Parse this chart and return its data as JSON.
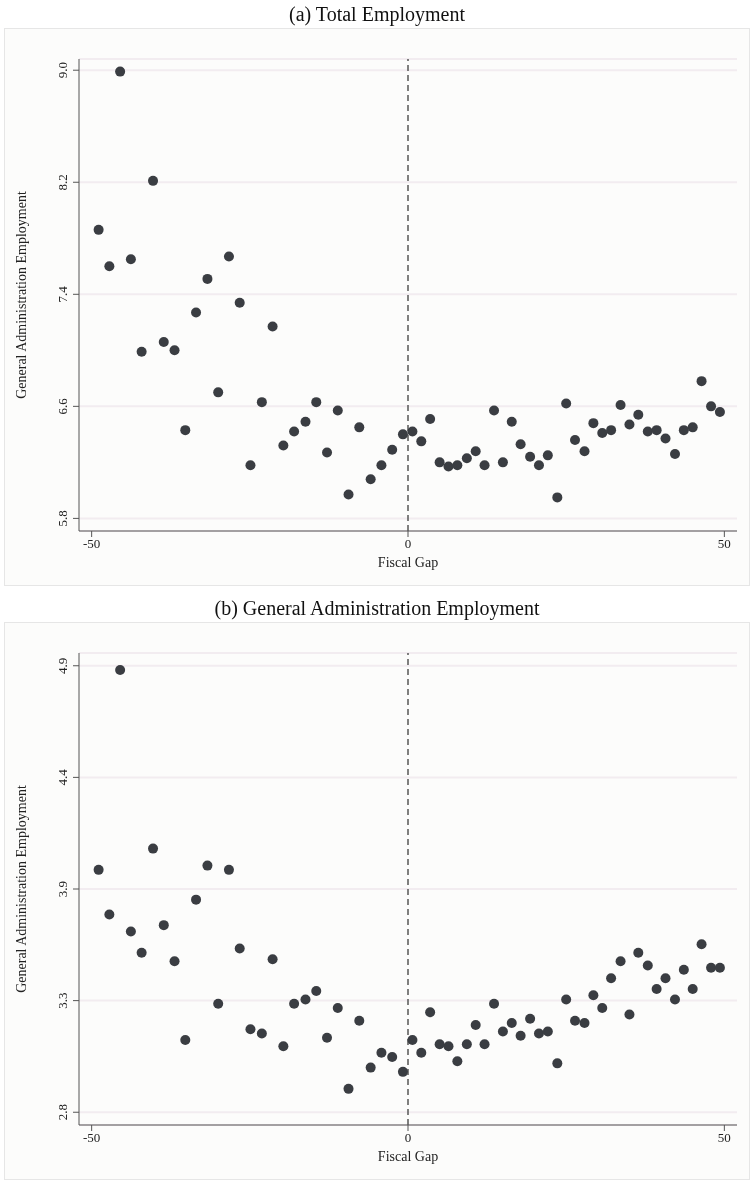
{
  "chart_data": [
    {
      "type": "scatter",
      "title": "(a) Total Employment",
      "xlabel": "Fiscal Gap",
      "ylabel": "General Administration Employment",
      "color": "#3a3d42",
      "marker": "circle",
      "grid": "y",
      "xlim": [
        -52,
        52
      ],
      "xticks": [
        -50,
        0,
        50
      ],
      "ylim": [
        5.71,
        9.08
      ],
      "yticks": [
        5.8,
        6.6,
        7.4,
        8.2,
        {
          "value": 9,
          "label": "9.0"
        }
      ],
      "ref_lines": [
        {
          "axis": "x",
          "value": 0,
          "line_style": "dashed",
          "color": "#555555"
        }
      ],
      "x": [
        -48.9,
        -47.2,
        -45.5,
        -43.8,
        -42.1,
        -40.3,
        -38.6,
        -36.9,
        -35.2,
        -33.5,
        -31.7,
        -30.0,
        -28.3,
        -26.6,
        -24.9,
        -23.1,
        -21.4,
        -19.7,
        -18.0,
        -16.2,
        -14.5,
        -12.8,
        -11.1,
        -9.4,
        -7.7,
        -5.9,
        -4.2,
        -2.5,
        -0.8,
        0.7,
        2.1,
        3.5,
        5.0,
        6.4,
        7.8,
        9.3,
        10.7,
        12.1,
        13.6,
        15.0,
        16.4,
        17.8,
        19.3,
        20.7,
        22.1,
        23.6,
        25.0,
        26.4,
        27.9,
        29.3,
        30.7,
        32.1,
        33.6,
        35.0,
        36.4,
        37.9,
        39.3,
        40.7,
        42.2,
        43.6,
        45.0,
        46.4,
        47.9,
        49.3
      ],
      "values": [
        7.86,
        7.6,
        8.99,
        7.65,
        6.99,
        8.21,
        7.06,
        7.0,
        6.43,
        7.27,
        7.51,
        6.7,
        7.67,
        7.34,
        6.18,
        6.63,
        7.17,
        6.32,
        6.42,
        6.49,
        6.63,
        6.27,
        6.57,
        5.97,
        6.45,
        6.08,
        6.18,
        6.29,
        6.4,
        6.42,
        6.35,
        6.51,
        6.2,
        6.17,
        6.18,
        6.23,
        6.28,
        6.18,
        6.57,
        6.2,
        6.49,
        6.33,
        6.24,
        6.18,
        6.25,
        5.95,
        6.62,
        6.36,
        6.28,
        6.48,
        6.41,
        6.43,
        6.61,
        6.47,
        6.54,
        6.42,
        6.43,
        6.37,
        6.26,
        6.43,
        6.45,
        6.78,
        6.6,
        6.56
      ]
    },
    {
      "type": "scatter",
      "title": "(b) General Administration Employment",
      "xlabel": "Fiscal Gap",
      "ylabel": "General Administration Employment",
      "color": "#3a3d42",
      "marker": "circle",
      "grid": "y",
      "xlim": [
        -52,
        52
      ],
      "xticks": [
        -50,
        0,
        50
      ],
      "ylim": [
        2.74,
        4.96
      ],
      "yticks": [
        2.8,
        {
          "value": 3.325,
          "label": "3.3"
        },
        {
          "value": 3.85,
          "label": "3.9"
        },
        {
          "value": 4.375,
          "label": "4.4"
        },
        4.9
      ],
      "ref_lines": [
        {
          "axis": "x",
          "value": 0,
          "line_style": "dashed",
          "color": "#555555"
        }
      ],
      "x": [
        -48.9,
        -47.2,
        -45.5,
        -43.8,
        -42.1,
        -40.3,
        -38.6,
        -36.9,
        -35.2,
        -33.5,
        -31.7,
        -30.0,
        -28.3,
        -26.6,
        -24.9,
        -23.1,
        -21.4,
        -19.7,
        -18.0,
        -16.2,
        -14.5,
        -12.8,
        -11.1,
        -9.4,
        -7.7,
        -5.9,
        -4.2,
        -2.5,
        -0.8,
        0.7,
        2.1,
        3.5,
        5.0,
        6.4,
        7.8,
        9.3,
        10.7,
        12.1,
        13.6,
        15.0,
        16.4,
        17.8,
        19.3,
        20.7,
        22.1,
        23.6,
        25.0,
        26.4,
        27.9,
        29.3,
        30.7,
        32.1,
        33.6,
        35.0,
        36.4,
        37.9,
        39.3,
        40.7,
        42.2,
        43.6,
        45.0,
        46.4,
        47.9,
        49.3
      ],
      "values": [
        3.94,
        3.73,
        4.88,
        3.65,
        3.55,
        4.04,
        3.68,
        3.51,
        3.14,
        3.8,
        3.96,
        3.31,
        3.94,
        3.57,
        3.19,
        3.17,
        3.52,
        3.11,
        3.31,
        3.33,
        3.37,
        3.15,
        3.29,
        2.91,
        3.23,
        3.01,
        3.08,
        3.06,
        2.99,
        3.14,
        3.08,
        3.27,
        3.12,
        3.11,
        3.04,
        3.12,
        3.21,
        3.12,
        3.31,
        3.18,
        3.22,
        3.16,
        3.24,
        3.17,
        3.18,
        3.03,
        3.33,
        3.23,
        3.22,
        3.35,
        3.29,
        3.43,
        3.51,
        3.26,
        3.55,
        3.49,
        3.38,
        3.43,
        3.33,
        3.47,
        3.38,
        3.59,
        3.48,
        3.48
      ]
    }
  ]
}
